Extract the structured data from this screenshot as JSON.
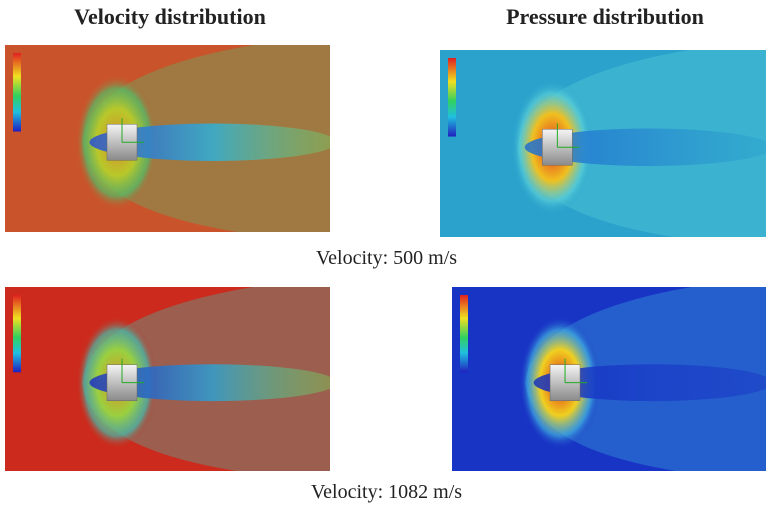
{
  "figure": {
    "column_titles": [
      "Velocity distribution",
      "Pressure distribution"
    ],
    "rows": [
      {
        "caption": "Velocity: 500 m/s"
      },
      {
        "caption": "Velocity: 1082 m/s"
      }
    ]
  }
}
